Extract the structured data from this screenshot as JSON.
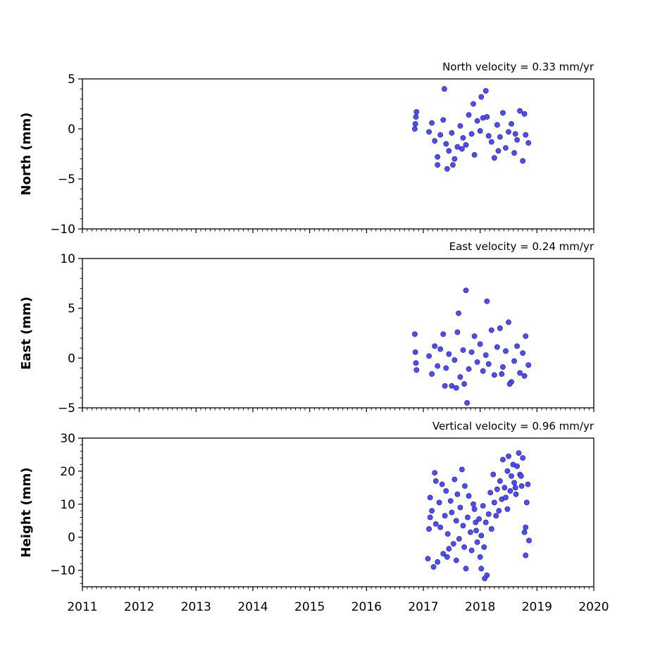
{
  "chart_data": [
    {
      "type": "scatter",
      "title": "North velocity = 0.33 mm/yr",
      "xlabel": "",
      "ylabel": "North (mm)",
      "xlim": [
        2011,
        2020
      ],
      "ylim": [
        -10,
        5
      ],
      "yticks": [
        -10,
        -5,
        0,
        5
      ],
      "ytick_labels": [
        "−10",
        "−5",
        "0",
        "5"
      ],
      "grid": false,
      "marker_color": "#4d4dff",
      "series": [
        {
          "x": [
            2016.85,
            2016.86,
            2016.87,
            2016.88,
            2017.1,
            2017.15,
            2017.2,
            2017.25,
            2017.3,
            2017.35,
            2017.37,
            2017.4,
            2017.45,
            2017.5,
            2017.55,
            2017.6,
            2017.65,
            2017.7,
            2017.75,
            2017.8,
            2017.85,
            2017.9,
            2017.95,
            2018.0,
            2018.05,
            2018.1,
            2018.15,
            2018.2,
            2018.25,
            2018.3,
            2018.35,
            2018.4,
            2018.45,
            2018.5,
            2018.55,
            2018.6,
            2018.65,
            2018.7,
            2018.75,
            2018.8,
            2018.85,
            2017.25,
            2017.42,
            2017.52,
            2017.68,
            2017.88,
            2018.02,
            2018.12,
            2018.32,
            2018.62,
            2018.78
          ],
          "y": [
            0.0,
            0.5,
            1.2,
            1.7,
            -0.3,
            0.6,
            -1.2,
            -2.8,
            -0.6,
            0.9,
            4.0,
            -1.5,
            -2.2,
            -0.4,
            -3.0,
            -1.8,
            0.3,
            -0.9,
            -1.6,
            1.4,
            -0.5,
            -2.6,
            0.8,
            -0.2,
            1.1,
            3.8,
            -0.7,
            -1.3,
            -2.9,
            0.4,
            -0.8,
            1.6,
            -1.9,
            -0.3,
            0.5,
            -2.4,
            -1.1,
            1.8,
            -3.2,
            -0.6,
            -1.4,
            -3.6,
            -4.0,
            -3.6,
            -2.0,
            2.5,
            3.2,
            1.2,
            -2.2,
            -0.5,
            1.5
          ]
        }
      ]
    },
    {
      "type": "scatter",
      "title": "East velocity = 0.24 mm/yr",
      "xlabel": "",
      "ylabel": "East (mm)",
      "xlim": [
        2011,
        2020
      ],
      "ylim": [
        -5,
        10
      ],
      "yticks": [
        -5,
        0,
        5,
        10
      ],
      "ytick_labels": [
        "−5",
        "0",
        "5",
        "10"
      ],
      "grid": false,
      "marker_color": "#4d4dff",
      "series": [
        {
          "x": [
            2016.85,
            2016.86,
            2016.87,
            2016.88,
            2017.1,
            2017.15,
            2017.2,
            2017.25,
            2017.3,
            2017.35,
            2017.4,
            2017.45,
            2017.5,
            2017.55,
            2017.6,
            2017.62,
            2017.65,
            2017.7,
            2017.75,
            2017.77,
            2017.8,
            2017.85,
            2017.9,
            2017.95,
            2018.0,
            2018.05,
            2018.1,
            2018.12,
            2018.15,
            2018.2,
            2018.25,
            2018.3,
            2018.35,
            2018.4,
            2018.45,
            2018.5,
            2018.55,
            2018.6,
            2018.65,
            2018.7,
            2018.75,
            2018.8,
            2018.85,
            2017.38,
            2017.58,
            2017.72,
            2018.38,
            2018.52,
            2018.78
          ],
          "y": [
            2.4,
            0.6,
            -0.5,
            -1.2,
            0.2,
            -1.6,
            1.2,
            -0.8,
            0.9,
            2.4,
            -1.0,
            0.4,
            -2.8,
            -0.2,
            2.6,
            4.5,
            -1.9,
            0.8,
            6.8,
            -4.5,
            -1.1,
            0.6,
            2.2,
            -0.4,
            1.4,
            -1.3,
            0.3,
            5.7,
            -0.6,
            2.8,
            -1.7,
            1.1,
            3.0,
            -0.9,
            0.7,
            3.6,
            -2.4,
            -0.3,
            1.2,
            -1.5,
            0.5,
            2.2,
            -0.7,
            -2.8,
            -3.0,
            -2.6,
            -1.6,
            -2.6,
            -1.8
          ]
        }
      ]
    },
    {
      "type": "scatter",
      "title": "Vertical velocity = 0.96 mm/yr",
      "xlabel": "",
      "ylabel": "Height (mm)",
      "xlim": [
        2011,
        2020
      ],
      "ylim": [
        -15,
        30
      ],
      "yticks": [
        -10,
        0,
        10,
        20,
        30
      ],
      "ytick_labels": [
        "−10",
        "0",
        "10",
        "20",
        "30"
      ],
      "xticks": [
        2011,
        2012,
        2013,
        2014,
        2015,
        2016,
        2017,
        2018,
        2019,
        2020
      ],
      "xtick_labels": [
        "2011",
        "2012",
        "2013",
        "2014",
        "2015",
        "2016",
        "2017",
        "2018",
        "2019",
        "2020"
      ],
      "grid": false,
      "marker_color": "#4d4dff",
      "series": [
        {
          "x": [
            2017.08,
            2017.1,
            2017.12,
            2017.15,
            2017.18,
            2017.2,
            2017.22,
            2017.25,
            2017.28,
            2017.3,
            2017.33,
            2017.35,
            2017.38,
            2017.4,
            2017.43,
            2017.45,
            2017.48,
            2017.5,
            2017.53,
            2017.55,
            2017.58,
            2017.6,
            2017.63,
            2017.65,
            2017.68,
            2017.7,
            2017.73,
            2017.75,
            2017.78,
            2017.8,
            2017.83,
            2017.85,
            2017.88,
            2017.9,
            2017.93,
            2017.95,
            2017.98,
            2018.0,
            2018.02,
            2018.05,
            2018.07,
            2018.1,
            2018.12,
            2018.15,
            2018.18,
            2018.2,
            2018.23,
            2018.25,
            2018.28,
            2018.3,
            2018.33,
            2018.35,
            2018.38,
            2018.4,
            2018.43,
            2018.45,
            2018.48,
            2018.5,
            2018.53,
            2018.55,
            2018.58,
            2018.6,
            2018.63,
            2018.65,
            2018.68,
            2018.7,
            2018.73,
            2018.75,
            2018.78,
            2018.8,
            2018.82,
            2018.84,
            2018.86,
            2017.12,
            2017.22,
            2017.42,
            2017.58,
            2017.72,
            2017.92,
            2018.02,
            2018.08,
            2018.48,
            2018.62,
            2018.72,
            2018.8
          ],
          "y": [
            -6.5,
            2.5,
            12.0,
            8.0,
            -9.0,
            19.5,
            4.0,
            -7.5,
            10.5,
            3.0,
            16.0,
            -5.0,
            6.5,
            14.0,
            1.0,
            -3.5,
            11.0,
            7.5,
            -2.0,
            17.5,
            5.0,
            13.0,
            -0.5,
            9.0,
            20.5,
            3.5,
            15.5,
            -9.5,
            6.0,
            12.5,
            1.5,
            -4.0,
            10.0,
            8.5,
            2.0,
            -1.5,
            5.5,
            -6.0,
            0.5,
            9.5,
            -3.0,
            4.5,
            -11.5,
            7.0,
            13.5,
            2.5,
            19.0,
            10.5,
            6.5,
            14.5,
            8.0,
            17.0,
            11.5,
            23.5,
            15.0,
            12.0,
            20.0,
            24.5,
            14.0,
            18.5,
            22.0,
            16.5,
            13.0,
            21.5,
            25.5,
            19.0,
            15.5,
            24.0,
            1.5,
            3.0,
            10.5,
            16.0,
            -1.0,
            6.0,
            17.0,
            -6.0,
            -7.0,
            -3.0,
            4.5,
            -9.5,
            -12.5,
            8.5,
            15.0,
            18.5,
            -5.5
          ]
        }
      ]
    }
  ]
}
